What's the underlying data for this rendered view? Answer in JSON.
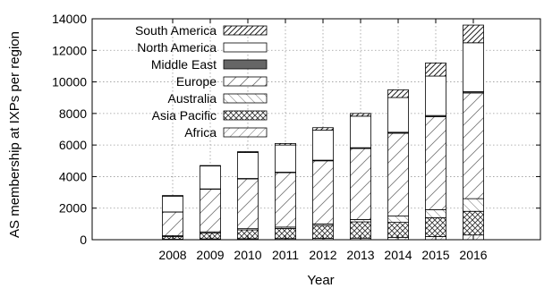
{
  "chart_data": {
    "type": "bar",
    "stacked": true,
    "xlabel": "Year",
    "ylabel": "AS membership at IXPs per region",
    "ylim": [
      0,
      14000
    ],
    "yticks": [
      0,
      2000,
      4000,
      6000,
      8000,
      10000,
      12000,
      14000
    ],
    "categories": [
      "2008",
      "2009",
      "2010",
      "2011",
      "2012",
      "2013",
      "2014",
      "2015",
      "2016"
    ],
    "grid": true,
    "legend_position": "top-left",
    "series": [
      {
        "name": "Africa",
        "pattern": "diag-right-light",
        "values": [
          30,
          50,
          60,
          70,
          80,
          100,
          150,
          200,
          300
        ]
      },
      {
        "name": "Asia Pacific",
        "pattern": "crosshatch",
        "values": [
          170,
          380,
          560,
          640,
          820,
          1030,
          950,
          1200,
          1500
        ]
      },
      {
        "name": "Australia",
        "pattern": "diag-left-light",
        "values": [
          50,
          70,
          80,
          90,
          100,
          150,
          400,
          500,
          800
        ]
      },
      {
        "name": "Europe",
        "pattern": "diag-right",
        "values": [
          1500,
          2700,
          3150,
          3450,
          4000,
          4500,
          5250,
          5900,
          6700
        ]
      },
      {
        "name": "Middle East",
        "pattern": "solid-gray",
        "values": [
          10,
          20,
          30,
          30,
          40,
          50,
          60,
          70,
          80
        ]
      },
      {
        "name": "North America",
        "pattern": "empty",
        "values": [
          1000,
          1450,
          1650,
          1720,
          1900,
          2000,
          2200,
          2500,
          3100
        ]
      },
      {
        "name": "South America",
        "pattern": "diag-dense",
        "values": [
          40,
          30,
          50,
          100,
          160,
          170,
          490,
          830,
          1120
        ]
      }
    ]
  }
}
